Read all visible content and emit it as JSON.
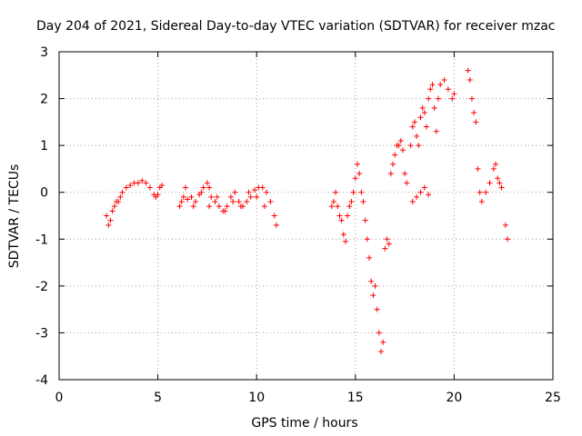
{
  "chart_data": {
    "type": "scatter",
    "title": "Day 204 of 2021, Sidereal Day-to-day VTEC variation (SDTVAR) for receiver mzac",
    "xlabel": "GPS time / hours",
    "ylabel": "SDTVAR / TECUs",
    "xlim": [
      0,
      25
    ],
    "ylim": [
      -4,
      3
    ],
    "xticks": [
      "0",
      "5",
      "10",
      "15",
      "20",
      "25"
    ],
    "yticks": [
      "3",
      "2",
      "1",
      "0",
      "-1",
      "-2",
      "-3",
      "-4"
    ],
    "grid": true,
    "series": [
      {
        "name": "SDTVAR",
        "color": "#ff0000",
        "marker": "plus",
        "x": [
          2.4,
          2.5,
          2.6,
          2.7,
          2.8,
          2.9,
          3.0,
          3.1,
          3.2,
          3.4,
          3.6,
          3.8,
          4.0,
          4.2,
          4.4,
          4.6,
          4.8,
          4.9,
          5.0,
          5.1,
          5.2,
          6.1,
          6.2,
          6.3,
          6.5,
          6.7,
          6.9,
          7.1,
          7.3,
          7.5,
          7.6,
          7.7,
          7.9,
          8.1,
          8.3,
          8.5,
          8.7,
          8.9,
          9.1,
          9.3,
          9.5,
          9.7,
          9.9,
          10.1,
          10.3,
          10.5,
          10.7,
          10.9,
          11.0,
          6.4,
          6.8,
          7.2,
          7.6,
          8.0,
          8.4,
          8.8,
          9.2,
          9.6,
          10.0,
          10.4,
          13.8,
          13.9,
          14.0,
          14.1,
          14.2,
          14.3,
          14.4,
          14.5,
          14.6,
          14.7,
          14.8,
          14.9,
          15.0,
          15.1,
          15.2,
          15.3,
          15.4,
          15.5,
          15.6,
          15.7,
          15.8,
          15.9,
          16.0,
          16.1,
          16.2,
          16.3,
          16.4,
          16.5,
          16.6,
          16.7,
          16.8,
          16.9,
          17.0,
          17.1,
          17.2,
          17.3,
          17.4,
          17.5,
          17.6,
          17.8,
          17.9,
          18.0,
          18.1,
          18.2,
          18.3,
          18.4,
          18.5,
          18.6,
          18.7,
          18.8,
          18.9,
          19.0,
          19.1,
          19.2,
          19.3,
          19.5,
          19.7,
          19.9,
          20.0,
          17.9,
          18.1,
          18.3,
          18.5,
          18.7,
          20.7,
          20.8,
          20.9,
          21.0,
          21.1,
          21.2,
          21.3,
          21.4,
          21.6,
          21.8,
          22.0,
          22.1,
          22.2,
          22.3,
          22.4,
          22.6,
          22.7
        ],
        "y": [
          -0.5,
          -0.7,
          -0.6,
          -0.4,
          -0.3,
          -0.2,
          -0.2,
          -0.1,
          0.0,
          0.1,
          0.15,
          0.2,
          0.2,
          0.25,
          0.2,
          0.1,
          -0.05,
          -0.1,
          -0.05,
          0.1,
          0.15,
          -0.3,
          -0.2,
          -0.1,
          -0.15,
          -0.1,
          -0.2,
          -0.05,
          0.1,
          0.2,
          0.1,
          -0.1,
          -0.2,
          -0.3,
          -0.4,
          -0.3,
          -0.1,
          0.0,
          -0.2,
          -0.3,
          -0.2,
          -0.1,
          0.05,
          0.1,
          0.1,
          0.0,
          -0.2,
          -0.5,
          -0.7,
          0.1,
          -0.3,
          0.0,
          -0.3,
          -0.1,
          -0.4,
          -0.2,
          -0.3,
          0.0,
          -0.1,
          -0.3,
          -0.3,
          -0.2,
          0.0,
          -0.3,
          -0.5,
          -0.6,
          -0.9,
          -1.05,
          -0.5,
          -0.3,
          -0.2,
          0.0,
          0.3,
          0.6,
          0.4,
          0.0,
          -0.2,
          -0.6,
          -1.0,
          -1.4,
          -1.9,
          -2.2,
          -2.0,
          -2.5,
          -3.0,
          -3.4,
          -3.2,
          -1.2,
          -1.0,
          -1.1,
          0.4,
          0.6,
          0.8,
          1.0,
          1.0,
          1.1,
          0.9,
          0.4,
          0.2,
          1.0,
          1.4,
          1.5,
          1.2,
          1.0,
          1.6,
          1.8,
          1.7,
          1.4,
          2.0,
          2.2,
          2.3,
          1.8,
          1.3,
          2.0,
          2.3,
          2.4,
          2.2,
          2.0,
          2.1,
          -0.2,
          -0.1,
          0.0,
          0.1,
          -0.05,
          2.6,
          2.4,
          2.0,
          1.7,
          1.5,
          0.5,
          0.0,
          -0.2,
          0.0,
          0.2,
          0.5,
          0.6,
          0.3,
          0.2,
          0.1,
          -0.7,
          -1.0
        ]
      }
    ]
  }
}
